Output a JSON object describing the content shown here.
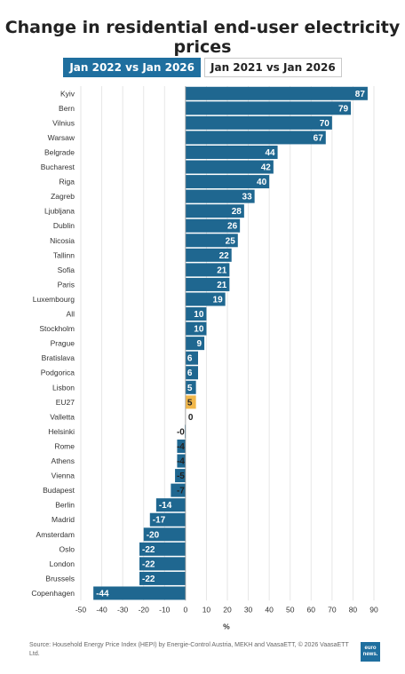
{
  "title": "Change in residential end-user electricity prices",
  "tabs": [
    {
      "label": "Jan 2022 vs Jan 2026",
      "active": true
    },
    {
      "label": "Jan 2021 vs Jan 2026",
      "active": false
    }
  ],
  "source": "Source: Household Energy Price Index (HEPI) by Energie-Control Austria, MEKH and VaasaETT, © 2026 VaasaETT Ltd.",
  "logo": "euro news.",
  "colors": {
    "bar": "#1f6790",
    "highlight": "#f2b84b"
  },
  "chart_data": {
    "type": "bar",
    "orientation": "horizontal",
    "xlabel": "%",
    "xlim": [
      -50,
      90
    ],
    "xticks": [
      -50,
      -40,
      -30,
      -20,
      -10,
      0,
      10,
      20,
      30,
      40,
      50,
      60,
      70,
      80,
      90
    ],
    "grid": true,
    "highlight": "EU27",
    "categories": [
      "Kyiv",
      "Bern",
      "Vilnius",
      "Warsaw",
      "Belgrade",
      "Bucharest",
      "Riga",
      "Zagreb",
      "Ljubljana",
      "Dublin",
      "Nicosia",
      "Tallinn",
      "Sofia",
      "Paris",
      "Luxembourg",
      "All",
      "Stockholm",
      "Prague",
      "Bratislava",
      "Podgorica",
      "Lisbon",
      "EU27",
      "Valletta",
      "Helsinki",
      "Rome",
      "Athens",
      "Vienna",
      "Budapest",
      "Berlin",
      "Madrid",
      "Amsterdam",
      "Oslo",
      "London",
      "Brussels",
      "Copenhagen"
    ],
    "values": [
      87,
      79,
      70,
      67,
      44,
      42,
      40,
      33,
      28,
      26,
      25,
      22,
      21,
      21,
      19,
      10,
      10,
      9,
      6,
      6,
      5,
      5,
      0,
      -0.3,
      -4,
      -4,
      -5,
      -7,
      -14,
      -17,
      -20,
      -22,
      -22,
      -22,
      -44
    ],
    "labels": [
      "87",
      "79",
      "70",
      "67",
      "44",
      "42",
      "40",
      "33",
      "28",
      "26",
      "25",
      "22",
      "21",
      "21",
      "19",
      "10",
      "10",
      "9",
      "6",
      "6",
      "5",
      "5",
      "0",
      "-0",
      "-4",
      "-4",
      "-5",
      "-7",
      "-14",
      "-17",
      "-20",
      "-22",
      "-22",
      "-22",
      "-44"
    ]
  }
}
